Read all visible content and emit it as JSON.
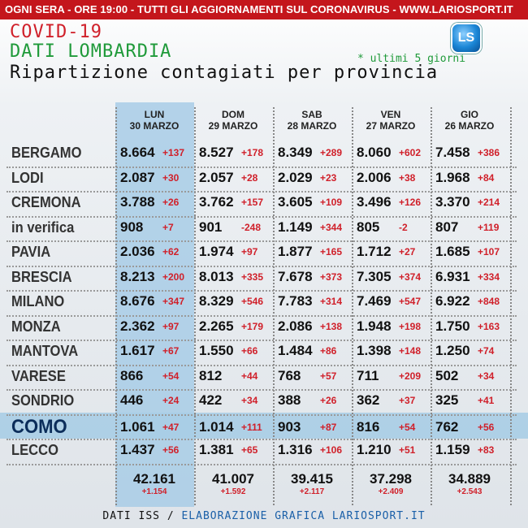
{
  "banner": {
    "text": "OGNI SERA - ORE 19:00 - TUTTI GLI AGGIORNAMENTI SUL CORONAVIRUS - ",
    "url": "WWW.LARIOSPORT.IT"
  },
  "title_line1": "COVID-19",
  "title_line2": "DATI LOMBARDIA",
  "title_line3": "Ripartizione contagiati per provincia",
  "note": "* ultimi 5 giorni",
  "logo_icon": "lariosport-logo-icon",
  "footer": {
    "left": "DATI ISS / ",
    "right": "ELABORAZIONE GRAFICA LARIOSPORT.IT"
  },
  "colors": {
    "banner": "#c4161c",
    "increase": "#d0202a",
    "highlight": "#a8cde6",
    "title_red": "#d0202a",
    "title_green": "#1f9a3a"
  },
  "chart_data": {
    "type": "table",
    "columns": [
      {
        "day": "LUN",
        "date": "30 MARZO"
      },
      {
        "day": "DOM",
        "date": "29 MARZO"
      },
      {
        "day": "SAB",
        "date": "28 MARZO"
      },
      {
        "day": "VEN",
        "date": "27 MARZO"
      },
      {
        "day": "GIO",
        "date": "26 MARZO"
      }
    ],
    "rows": [
      {
        "province": "BERGAMO",
        "values": [
          "8.664",
          "8.527",
          "8.349",
          "8.060",
          "7.458"
        ],
        "deltas": [
          "+137",
          "+178",
          "+289",
          "+602",
          "+386"
        ]
      },
      {
        "province": "LODI",
        "values": [
          "2.087",
          "2.057",
          "2.029",
          "2.006",
          "1.968"
        ],
        "deltas": [
          "+30",
          "+28",
          "+23",
          "+38",
          "+84"
        ]
      },
      {
        "province": "CREMONA",
        "values": [
          "3.788",
          "3.762",
          "3.605",
          "3.496",
          "3.370"
        ],
        "deltas": [
          "+26",
          "+157",
          "+109",
          "+126",
          "+214"
        ]
      },
      {
        "province": "in verifica",
        "values": [
          "908",
          "901",
          "1.149",
          "805",
          "807"
        ],
        "deltas": [
          "+7",
          "-248",
          "+344",
          "-2",
          "+119"
        ]
      },
      {
        "province": "PAVIA",
        "values": [
          "2.036",
          "1.974",
          "1.877",
          "1.712",
          "1.685"
        ],
        "deltas": [
          "+62",
          "+97",
          "+165",
          "+27",
          "+107"
        ]
      },
      {
        "province": "BRESCIA",
        "values": [
          "8.213",
          "8.013",
          "7.678",
          "7.305",
          "6.931"
        ],
        "deltas": [
          "+200",
          "+335",
          "+373",
          "+374",
          "+334"
        ]
      },
      {
        "province": "MILANO",
        "values": [
          "8.676",
          "8.329",
          "7.783",
          "7.469",
          "6.922"
        ],
        "deltas": [
          "+347",
          "+546",
          "+314",
          "+547",
          "+848"
        ]
      },
      {
        "province": "MONZA",
        "values": [
          "2.362",
          "2.265",
          "2.086",
          "1.948",
          "1.750"
        ],
        "deltas": [
          "+97",
          "+179",
          "+138",
          "+198",
          "+163"
        ]
      },
      {
        "province": "MANTOVA",
        "values": [
          "1.617",
          "1.550",
          "1.484",
          "1.398",
          "1.250"
        ],
        "deltas": [
          "+67",
          "+66",
          "+86",
          "+148",
          "+74"
        ]
      },
      {
        "province": "VARESE",
        "values": [
          "866",
          "812",
          "768",
          "711",
          "502"
        ],
        "deltas": [
          "+54",
          "+44",
          "+57",
          "+209",
          "+34"
        ]
      },
      {
        "province": "SONDRIO",
        "values": [
          "446",
          "422",
          "388",
          "362",
          "325"
        ],
        "deltas": [
          "+24",
          "+34",
          "+26",
          "+37",
          "+41"
        ]
      },
      {
        "province": "COMO",
        "values": [
          "1.061",
          "1.014",
          "903",
          "816",
          "762"
        ],
        "deltas": [
          "+47",
          "+111",
          "+87",
          "+54",
          "+56"
        ]
      },
      {
        "province": "LECCO",
        "values": [
          "1.437",
          "1.381",
          "1.316",
          "1.210",
          "1.159"
        ],
        "deltas": [
          "+56",
          "+65",
          "+106",
          "+51",
          "+83"
        ]
      }
    ],
    "totals": [
      "42.161",
      "41.007",
      "39.415",
      "37.298",
      "34.889"
    ],
    "total_deltas": [
      "+1.154",
      "+1.592",
      "+2.117",
      "+2.409",
      "+2.543"
    ]
  }
}
